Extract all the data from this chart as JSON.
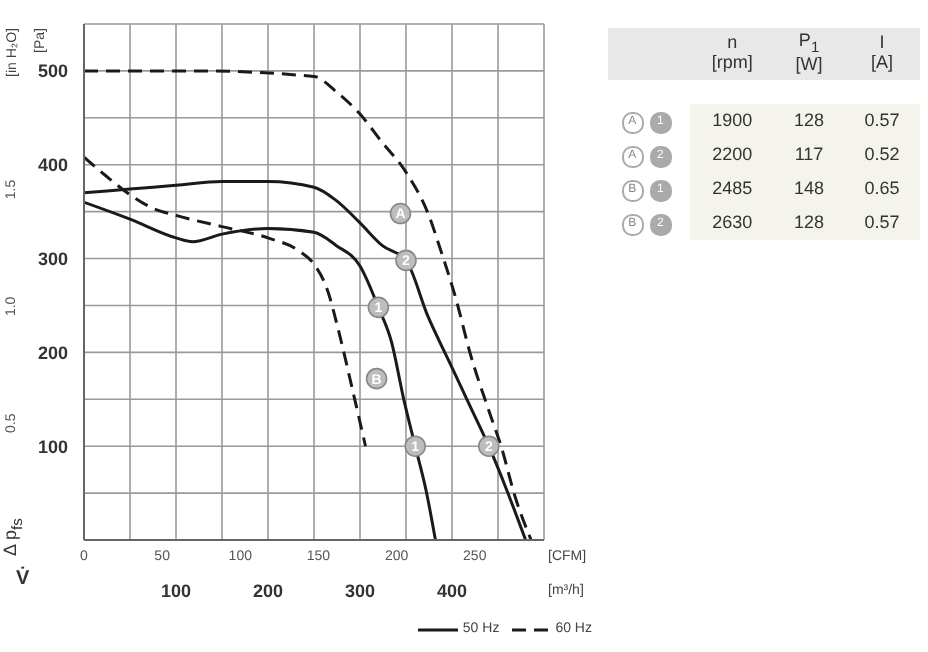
{
  "chart_data": [
    {
      "type": "line",
      "xlabel": "[m³/h]",
      "x2label": "[CFM]",
      "ylabel": "[Pa]",
      "y2label": "[in H₂O]",
      "xlim": [
        0,
        500
      ],
      "xticks": [
        {
          "value": 0,
          "label": null
        },
        {
          "value": 50,
          "label": null
        },
        100,
        {
          "value": 150,
          "label": null
        },
        200,
        {
          "value": 250,
          "label": null
        },
        300,
        {
          "value": 350,
          "label": null
        },
        400,
        {
          "value": 450,
          "label": null
        },
        {
          "value": 500,
          "label": null
        }
      ],
      "x2lim": [
        0,
        294.3
      ],
      "x2ticks": [
        0,
        50,
        100,
        150,
        200,
        250
      ],
      "ylim": [
        0,
        550
      ],
      "yticks": [
        {
          "value": 0,
          "label": null
        },
        {
          "value": 50,
          "label": null
        },
        100,
        {
          "value": 150,
          "label": null
        },
        200,
        {
          "value": 250,
          "label": null
        },
        300,
        {
          "value": 350,
          "label": null
        },
        400,
        {
          "value": 450,
          "label": null
        },
        500,
        {
          "value": 550,
          "label": null
        }
      ],
      "y2lim": [
        0,
        2.208
      ],
      "y2ticks": [
        0.5,
        {
          "value": 1,
          "label": "1.0"
        },
        1.5
      ],
      "grid": true,
      "legend": "bottom right",
      "series": [
        {
          "name": "50 Hz",
          "color": "#1a1a1a",
          "line_style": "solid",
          "x": [
            0,
            50,
            100,
            150,
            200,
            250,
            274,
            300,
            324,
            350,
            374,
            398,
            420,
            440,
            460,
            480
          ],
          "values": [
            370,
            374,
            378,
            382,
            382,
            376,
            362,
            338,
            314,
            298,
            238,
            188,
            142,
            100,
            52,
            0
          ]
        },
        {
          "color": "#1a1a1a",
          "line_style": "solid",
          "x": [
            0,
            50,
            100,
            118,
            150,
            200,
            250,
            274,
            300,
            320,
            334,
            348,
            360,
            372,
            382
          ],
          "values": [
            360,
            342,
            322,
            318,
            326,
            332,
            328,
            314,
            292,
            248,
            212,
            148,
            100,
            52,
            0
          ]
        },
        {
          "name": "60 Hz",
          "color": "#1a1a1a",
          "line_style": "dashed",
          "x": [
            0,
            24,
            50,
            74,
            100,
            150,
            200,
            234,
            250,
            264,
            278,
            290,
            306
          ],
          "values": [
            408,
            388,
            368,
            354,
            346,
            334,
            322,
            308,
            294,
            268,
            218,
            168,
            100
          ]
        },
        {
          "color": "#1a1a1a",
          "line_style": "dashed",
          "x": [
            0,
            124,
            250,
            274,
            300,
            324,
            350,
            374,
            388,
            404,
            420,
            440,
            454,
            468,
            486
          ],
          "values": [
            500,
            500,
            494,
            478,
            454,
            424,
            392,
            348,
            308,
            258,
            198,
            138,
            98,
            48,
            0
          ]
        }
      ],
      "annotations": [
        "Δ p$_{fs}$",
        "V̇",
        {
          "text": "2",
          "x": 350,
          "y": 298
        },
        {
          "text": "1",
          "x": 320,
          "y": 248
        },
        {
          "text": "1",
          "x": 360,
          "y": 100
        },
        {
          "text": "2",
          "x": 440,
          "y": 100
        },
        {
          "text": "A",
          "x": 344,
          "y": 348
        },
        {
          "text": "B",
          "x": 318,
          "y": 172
        }
      ]
    },
    {
      "type": "other",
      "categories": [
        "n [rpm]",
        "P$_{1}$ [W]",
        "I [A]"
      ],
      "y_categories": [
        "A 1",
        "A 2",
        "B 1",
        "B 2"
      ],
      "cell_labels": [
        [
          "1900",
          "128",
          "0.57"
        ],
        [
          "2200",
          "117",
          "0.52"
        ],
        [
          "2485",
          "148",
          "0.65"
        ],
        [
          "2630",
          "128",
          "0.57"
        ]
      ]
    }
  ]
}
